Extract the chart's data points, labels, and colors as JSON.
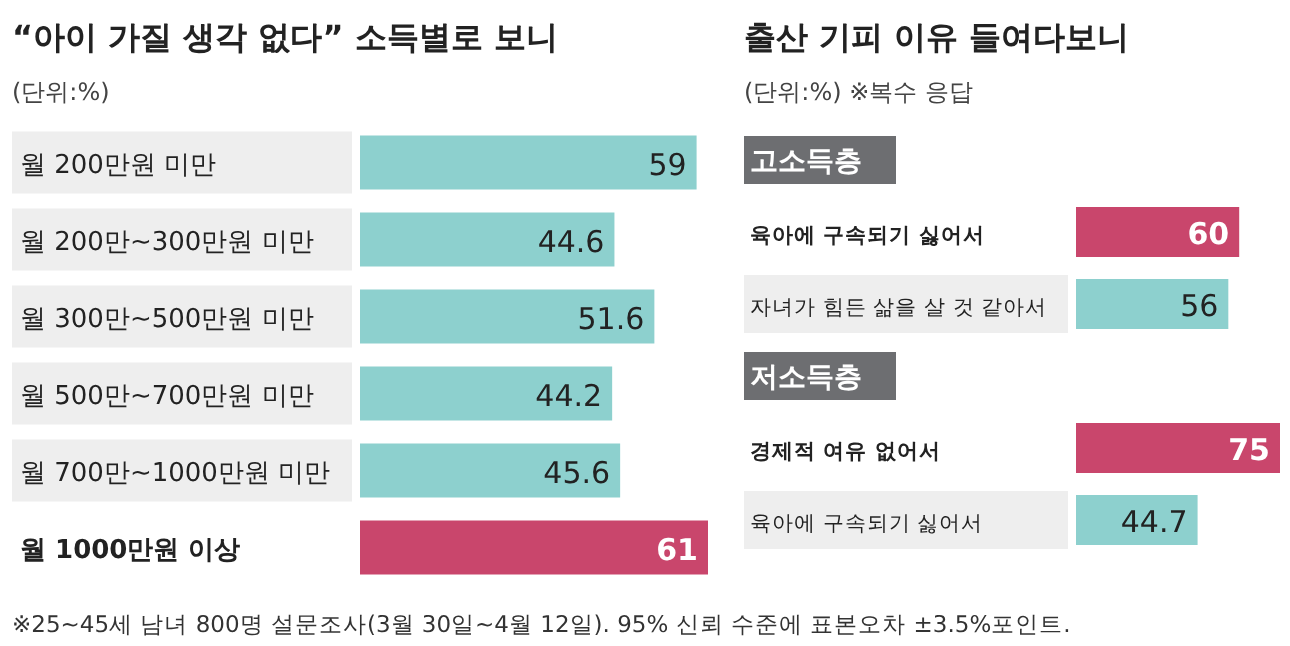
{
  "chart_data": [
    {
      "type": "bar",
      "orientation": "horizontal",
      "title": "“아이 가질 생각 없다” 소득별로 보니",
      "subtitle": "(단위:%)",
      "categories": [
        "월 200만원 미만",
        "월 200만~300만원 미만",
        "월 300만~500만원 미만",
        "월 500만~700만원 미만",
        "월 700만~1000만원 미만",
        "월 1000만원 이상"
      ],
      "values": [
        59,
        44.6,
        51.6,
        44.2,
        45.6,
        61
      ],
      "colors": [
        "#8dd0ce",
        "#8dd0ce",
        "#8dd0ce",
        "#8dd0ce",
        "#8dd0ce",
        "#c9466c"
      ],
      "data_labels": true,
      "annotations": [
        "※25~45세 남녀 800명 설문조사(3월 30일~4월 12일). 95% 신뢰 수준에 표본오차 ±3.5%포인트."
      ]
    },
    {
      "type": "bar",
      "orientation": "horizontal",
      "title": "출산 기피 이유 들여다보니",
      "subtitle": "(단위:%)  ※복수 응답",
      "categories": [
        "고소득층",
        "육아에 구속되기 싫어서",
        "자녀가 힘든 삶을 살 것 같아서",
        "저소득층",
        "경제적 여유 없어서",
        "육아에 구속되기 싫어서"
      ],
      "values": [
        null,
        60,
        56,
        null,
        75,
        44.7
      ],
      "colors": [
        null,
        "#c9466c",
        "#8dd0ce",
        null,
        "#c9466c",
        "#8dd0ce"
      ],
      "data_labels": true
    }
  ]
}
